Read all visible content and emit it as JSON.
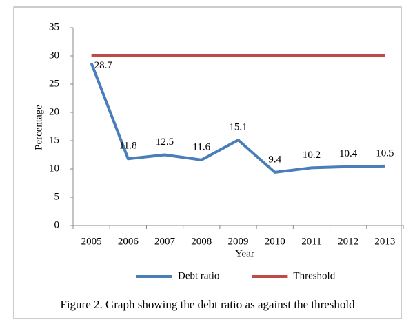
{
  "chart_data": {
    "type": "line",
    "title": "Figure 2. Graph showing the debt ratio as against the threshold",
    "x_label": "Year",
    "y_label": "Percentage",
    "categories": [
      "2005",
      "2006",
      "2007",
      "2008",
      "2009",
      "2010",
      "2011",
      "2012",
      "2013"
    ],
    "series": [
      {
        "name": "Debt ratio",
        "color": "#4a7ebb",
        "values": [
          28.7,
          11.8,
          12.5,
          11.6,
          15.1,
          9.4,
          10.2,
          10.4,
          10.5
        ],
        "data_labels": true
      },
      {
        "name": "Threshold",
        "color": "#be4b48",
        "values": [
          30,
          30,
          30,
          30,
          30,
          30,
          30,
          30,
          30
        ],
        "data_labels": false
      }
    ],
    "ylim": [
      0,
      35
    ],
    "yticks": [
      0,
      5,
      10,
      15,
      20,
      25,
      30,
      35
    ],
    "grid": false,
    "legend": "bottom"
  }
}
